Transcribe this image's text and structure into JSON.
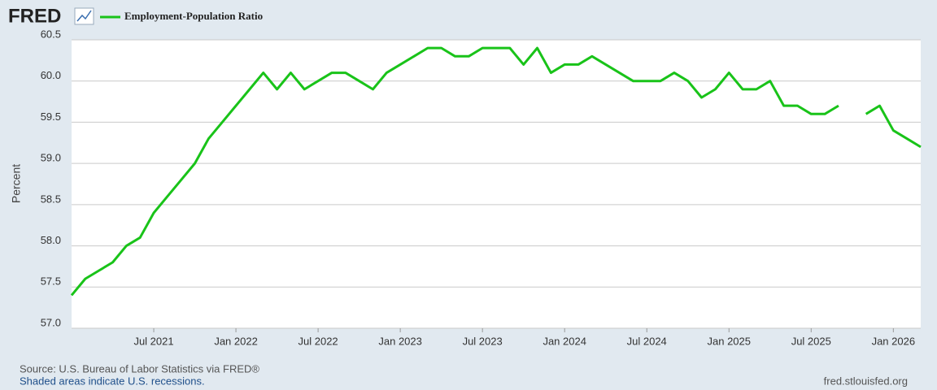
{
  "chart_data": {
    "type": "line",
    "brand": "FRED",
    "y_label": "Percent",
    "source": "Source: U.S. Bureau of Labor Statistics via FRED®",
    "note": "Shaded areas indicate U.S. recessions.",
    "url": "fred.stlouisfed.org",
    "x": [
      "2021-01",
      "2021-02",
      "2021-03",
      "2021-04",
      "2021-05",
      "2021-06",
      "2021-07",
      "2021-08",
      "2021-09",
      "2021-10",
      "2021-11",
      "2021-12",
      "2022-01",
      "2022-02",
      "2022-03",
      "2022-04",
      "2022-05",
      "2022-06",
      "2022-07",
      "2022-08",
      "2022-09",
      "2022-10",
      "2022-11",
      "2022-12",
      "2023-01",
      "2023-02",
      "2023-03",
      "2023-04",
      "2023-05",
      "2023-06",
      "2023-07",
      "2023-08",
      "2023-09",
      "2023-10",
      "2023-11",
      "2023-12",
      "2024-01",
      "2024-02",
      "2024-03",
      "2024-04",
      "2024-05",
      "2024-06",
      "2024-07",
      "2024-08",
      "2024-09",
      "2024-10",
      "2024-11",
      "2024-12",
      "2025-01",
      "2025-02",
      "2025-03",
      "2025-04",
      "2025-05",
      "2025-06",
      "2025-07",
      "2025-08",
      "2025-09",
      "2025-10",
      "2025-11",
      "2025-12",
      "2026-01",
      "2026-02",
      "2026-03"
    ],
    "series": [
      {
        "name": "Employment-Population Ratio",
        "color": "#19c319",
        "values": [
          57.4,
          57.6,
          57.7,
          57.8,
          58.0,
          58.1,
          58.4,
          58.6,
          58.8,
          59.0,
          59.3,
          59.5,
          59.7,
          59.9,
          60.1,
          59.9,
          60.1,
          59.9,
          60.0,
          60.1,
          60.1,
          60.0,
          59.9,
          60.1,
          60.2,
          60.3,
          60.4,
          60.4,
          60.3,
          60.3,
          60.4,
          60.4,
          60.4,
          60.2,
          60.4,
          60.1,
          60.2,
          60.2,
          60.3,
          60.2,
          60.1,
          60.0,
          60.0,
          60.0,
          60.1,
          60.0,
          59.8,
          59.9,
          60.1,
          59.9,
          59.9,
          60.0,
          59.7,
          59.7,
          59.6,
          59.6,
          59.7,
          null,
          59.6,
          59.7,
          59.4,
          59.3,
          59.2
        ]
      }
    ],
    "xlim": [
      "2021-01",
      "2026-03"
    ],
    "xticks": [
      {
        "value": "2021-07",
        "label": "Jul 2021"
      },
      {
        "value": "2022-01",
        "label": "Jan 2022"
      },
      {
        "value": "2022-07",
        "label": "Jul 2022"
      },
      {
        "value": "2023-01",
        "label": "Jan 2023"
      },
      {
        "value": "2023-07",
        "label": "Jul 2023"
      },
      {
        "value": "2024-01",
        "label": "Jan 2024"
      },
      {
        "value": "2024-07",
        "label": "Jul 2024"
      },
      {
        "value": "2025-01",
        "label": "Jan 2025"
      },
      {
        "value": "2025-07",
        "label": "Jul 2025"
      },
      {
        "value": "2026-01",
        "label": "Jan 2026"
      }
    ],
    "ylim": [
      57,
      60.5
    ],
    "yticks": [
      {
        "value": 57,
        "label": "57.0"
      },
      57.5,
      {
        "value": 58,
        "label": "58.0"
      },
      58.5,
      {
        "value": 59,
        "label": "59.0"
      },
      59.5,
      {
        "value": 60,
        "label": "60.0"
      },
      60.5
    ],
    "grid": true
  }
}
